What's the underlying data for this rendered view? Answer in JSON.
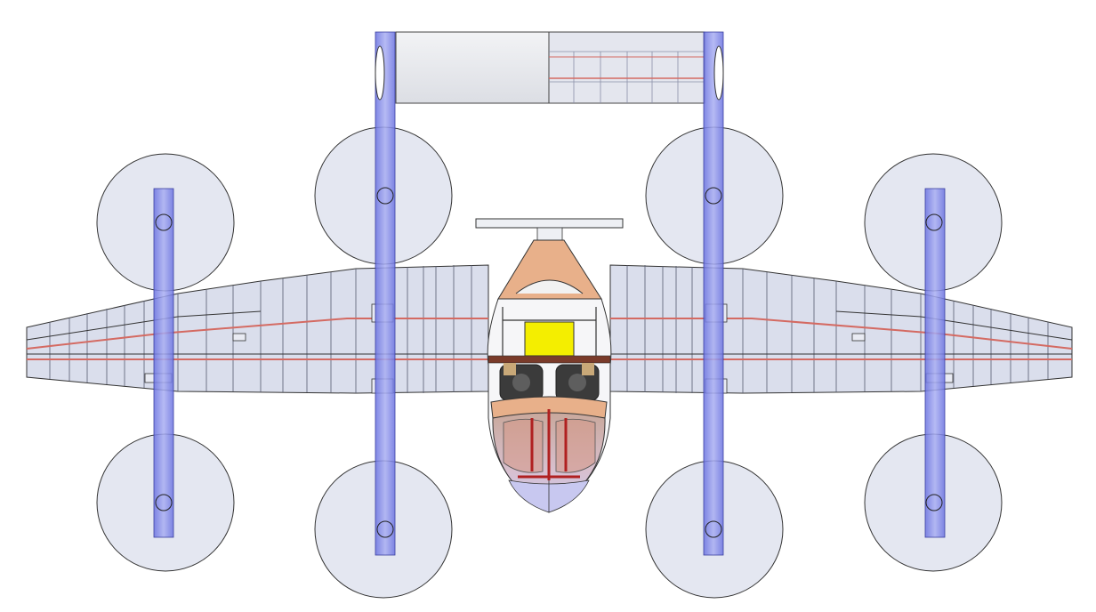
{
  "view": "top-view",
  "colors": {
    "background": "#ffffff",
    "wing_fill": "#d8dcec",
    "boom": "#7f86e8",
    "rotor_disc": "#dfe3ef",
    "outline": "#2a2a2a",
    "spar": "#d46a62",
    "canopy_orange": "#e8b08a",
    "battery_yellow": "#f4ee00",
    "frame_red": "#b02020"
  },
  "components": {
    "wing": "main-wing",
    "fuselage": "fuselage-pod",
    "tail": "tail-stabilizer",
    "rotors": [
      "rotor-outer-left-front",
      "rotor-inner-left-front",
      "rotor-inner-right-front",
      "rotor-outer-right-front",
      "rotor-outer-left-rear",
      "rotor-inner-left-rear",
      "rotor-inner-right-rear",
      "rotor-outer-right-rear"
    ]
  }
}
